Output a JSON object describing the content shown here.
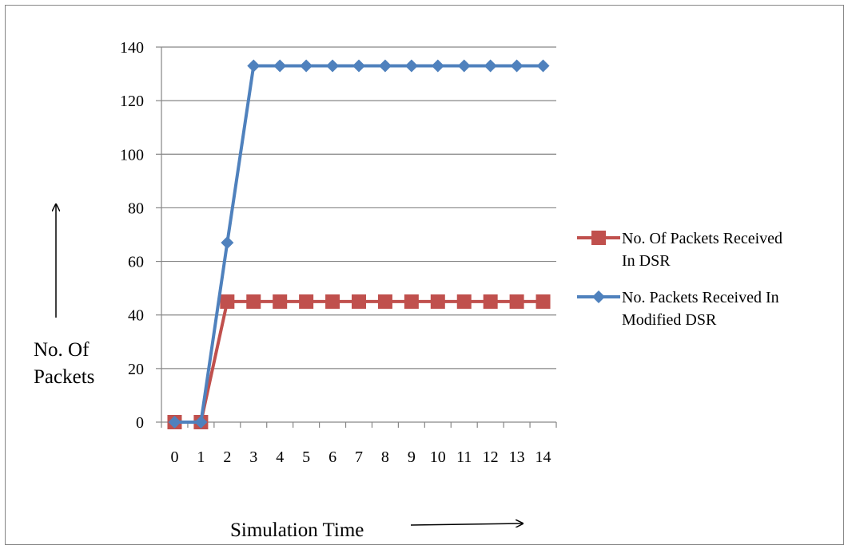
{
  "chart_data": {
    "type": "line",
    "title": "",
    "xlabel": "Simulation Time",
    "ylabel_lines": [
      "No. Of",
      "Packets"
    ],
    "x": [
      0,
      1,
      2,
      3,
      4,
      5,
      6,
      7,
      8,
      9,
      10,
      11,
      12,
      13,
      14
    ],
    "ylim": [
      0,
      140
    ],
    "yticks": [
      0,
      20,
      40,
      60,
      80,
      100,
      120,
      140
    ],
    "grid": true,
    "legend_position": "right",
    "series": [
      {
        "name_lines": [
          "No. Of Packets Received",
          "In DSR"
        ],
        "color": "#C0504D",
        "marker": "square",
        "values": [
          0,
          0,
          45,
          45,
          45,
          45,
          45,
          45,
          45,
          45,
          45,
          45,
          45,
          45,
          45
        ]
      },
      {
        "name_lines": [
          "No. Packets Received In",
          "Modified DSR"
        ],
        "color": "#4F81BD",
        "marker": "diamond",
        "values": [
          0,
          0,
          67,
          133,
          133,
          133,
          133,
          133,
          133,
          133,
          133,
          133,
          133,
          133,
          133
        ]
      }
    ]
  }
}
